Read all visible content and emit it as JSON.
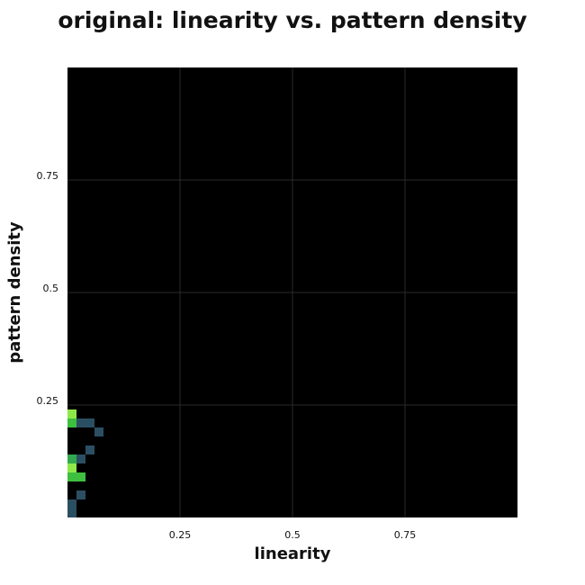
{
  "chart_data": {
    "type": "heatmap",
    "title": "original: linearity vs. pattern density",
    "xlabel": "linearity",
    "ylabel": "pattern density",
    "xlim": [
      0,
      1
    ],
    "ylim": [
      0,
      1
    ],
    "x_ticks": [
      0.25,
      0.5,
      0.75
    ],
    "y_ticks": [
      0.25,
      0.5,
      0.75
    ],
    "x_tick_labels": [
      "0.25",
      "0.5",
      "0.75"
    ],
    "y_tick_labels": [
      "0.25",
      "0.5",
      "0.75"
    ],
    "grid": true,
    "bin_width": 0.02,
    "background_color": "#000000",
    "grid_color": "#2a2a2a",
    "cells": [
      {
        "x": 0.0,
        "y": 0.0,
        "color": "#2a4f63"
      },
      {
        "x": 0.0,
        "y": 0.02,
        "color": "#2a4f63"
      },
      {
        "x": 0.02,
        "y": 0.04,
        "color": "#2a4f63"
      },
      {
        "x": 0.0,
        "y": 0.08,
        "color": "#3fbf3f"
      },
      {
        "x": 0.02,
        "y": 0.08,
        "color": "#3fbf3f"
      },
      {
        "x": 0.0,
        "y": 0.1,
        "color": "#8fe84a"
      },
      {
        "x": 0.0,
        "y": 0.12,
        "color": "#33a84f"
      },
      {
        "x": 0.02,
        "y": 0.12,
        "color": "#2a4f63"
      },
      {
        "x": 0.04,
        "y": 0.14,
        "color": "#2a4f63"
      },
      {
        "x": 0.06,
        "y": 0.18,
        "color": "#2a4f63"
      },
      {
        "x": 0.0,
        "y": 0.2,
        "color": "#3fbf3f"
      },
      {
        "x": 0.02,
        "y": 0.2,
        "color": "#2a4f63"
      },
      {
        "x": 0.04,
        "y": 0.2,
        "color": "#2a4f63"
      },
      {
        "x": 0.0,
        "y": 0.22,
        "color": "#8fe84a"
      }
    ]
  }
}
